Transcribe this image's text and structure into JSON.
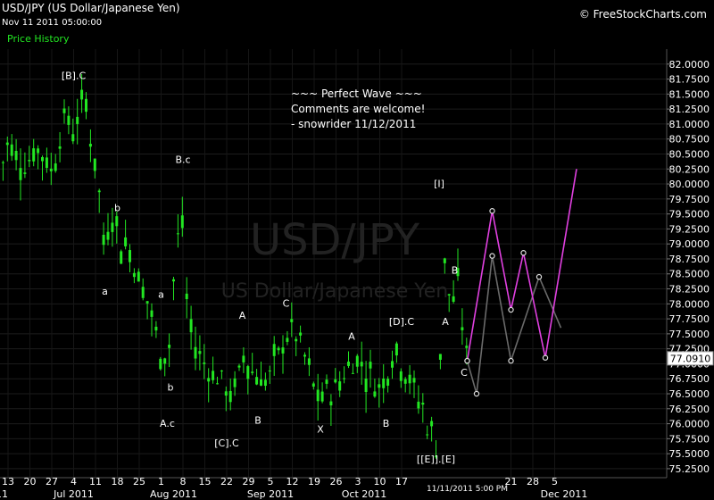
{
  "header": {
    "symbol_title": "USD/JPY (US Dollar/Japanese Yen)",
    "datetime": "Nov 11 2011 05:00:00",
    "panel_label": "Price History",
    "brand": "© FreeStockCharts.com"
  },
  "watermark": {
    "symbol": "USD/JPY",
    "name": "US Dollar/Japanese Yen"
  },
  "comment_lines": [
    "~~~ Perfect Wave ~~~",
    "Comments are welcome!",
    "- snowrider  11/12/2011"
  ],
  "colors": {
    "candles": "#22e622",
    "projection_primary": "#e040e0",
    "projection_alt": "#6a6a6a",
    "label_text": "#ffffff",
    "last_price_bg": "#ffffff"
  },
  "chart_data": {
    "type": "candlestick",
    "ylim": [
      75.1,
      82.25
    ],
    "y_ticks": [
      82.0,
      81.75,
      81.5,
      81.25,
      81.0,
      80.75,
      80.5,
      80.25,
      80.0,
      79.75,
      79.5,
      79.25,
      79.0,
      78.75,
      78.5,
      78.25,
      78.0,
      77.75,
      77.5,
      77.25,
      77.0,
      76.75,
      76.5,
      76.25,
      76.0,
      75.75,
      75.5,
      75.25
    ],
    "y_tick_labels": [
      "82.0000",
      "81.7500",
      "81.5000",
      "81.2500",
      "81.0000",
      "80.7500",
      "80.5000",
      "80.2500",
      "80.0000",
      "79.7500",
      "79.5000",
      "79.2500",
      "79.0000",
      "78.7500",
      "78.5000",
      "78.2500",
      "78.0000",
      "77.7500",
      "77.5000",
      "77.2500",
      "77.0000",
      "76.7500",
      "76.5000",
      "76.2500",
      "76.0000",
      "75.7500",
      "75.5000",
      "75.2500"
    ],
    "x_day_ticks": [
      {
        "label": "13",
        "day": 0
      },
      {
        "label": "20",
        "day": 7
      },
      {
        "label": "27",
        "day": 14
      },
      {
        "label": "4",
        "day": 21
      },
      {
        "label": "11",
        "day": 28
      },
      {
        "label": "18",
        "day": 35
      },
      {
        "label": "25",
        "day": 42
      },
      {
        "label": "1",
        "day": 49
      },
      {
        "label": "8",
        "day": 56
      },
      {
        "label": "15",
        "day": 63
      },
      {
        "label": "22",
        "day": 70
      },
      {
        "label": "29",
        "day": 77
      },
      {
        "label": "5",
        "day": 84
      },
      {
        "label": "12",
        "day": 91
      },
      {
        "label": "19",
        "day": 98
      },
      {
        "label": "26",
        "day": 105
      },
      {
        "label": "3",
        "day": 112
      },
      {
        "label": "10",
        "day": 119
      },
      {
        "label": "17",
        "day": 126
      },
      {
        "label": "21",
        "day": 161
      },
      {
        "label": "28",
        "day": 168
      },
      {
        "label": "5",
        "day": 175
      }
    ],
    "x_month_labels": [
      {
        "label": "2011",
        "day": -4
      },
      {
        "label": "Jul 2011",
        "day": 21
      },
      {
        "label": "Aug 2011",
        "day": 53
      },
      {
        "label": "Sep 2011",
        "day": 84
      },
      {
        "label": "Oct 2011",
        "day": 114
      },
      {
        "label": "Dec 2011",
        "day": 178
      }
    ],
    "last_bar_label": {
      "label": "11/11/2011 5:00 PM",
      "day": 147
    },
    "last_price": 77.091,
    "last_price_label": "77.0910",
    "close_path": [
      [
        -3,
        80.1
      ],
      [
        0,
        80.7
      ],
      [
        5,
        80.3
      ],
      [
        10,
        80.6
      ],
      [
        14,
        80.2
      ],
      [
        18,
        81.1
      ],
      [
        21,
        80.9
      ],
      [
        23,
        81.2
      ],
      [
        25,
        81.4
      ],
      [
        27,
        80.5
      ],
      [
        29,
        80.0
      ],
      [
        30,
        79.3
      ],
      [
        31,
        78.8
      ],
      [
        33,
        79.6
      ],
      [
        36,
        79.0
      ],
      [
        39,
        78.9
      ],
      [
        42,
        78.4
      ],
      [
        45,
        78.0
      ],
      [
        47,
        77.6
      ],
      [
        49,
        77.0
      ],
      [
        50,
        77.3
      ],
      [
        51,
        76.8
      ],
      [
        52,
        77.7
      ],
      [
        53,
        78.4
      ],
      [
        54,
        78.8
      ],
      [
        55,
        79.6
      ],
      [
        56,
        79.2
      ],
      [
        57,
        78.2
      ],
      [
        58,
        77.6
      ],
      [
        60,
        77.3
      ],
      [
        63,
        77.0
      ],
      [
        66,
        76.8
      ],
      [
        69,
        76.7
      ],
      [
        71,
        76.4
      ],
      [
        73,
        76.7
      ],
      [
        75,
        76.9
      ],
      [
        76,
        77.5
      ],
      [
        77,
        76.9
      ],
      [
        80,
        76.8
      ],
      [
        83,
        76.7
      ],
      [
        86,
        77.1
      ],
      [
        88,
        77.3
      ],
      [
        90,
        77.6
      ],
      [
        93,
        77.4
      ],
      [
        95,
        77.1
      ],
      [
        98,
        76.6
      ],
      [
        100,
        76.3
      ],
      [
        102,
        76.6
      ],
      [
        104,
        76.5
      ],
      [
        107,
        76.8
      ],
      [
        110,
        77.0
      ],
      [
        112,
        77.1
      ],
      [
        114,
        76.9
      ],
      [
        116,
        76.8
      ],
      [
        119,
        76.6
      ],
      [
        121,
        76.8
      ],
      [
        123,
        77.2
      ],
      [
        125,
        77.1
      ],
      [
        127,
        76.9
      ],
      [
        129,
        76.7
      ],
      [
        131,
        76.4
      ],
      [
        133,
        76.3
      ],
      [
        134,
        76.0
      ],
      [
        135,
        75.8
      ],
      [
        136,
        75.9
      ],
      [
        137,
        75.6
      ],
      [
        138,
        76.0
      ],
      [
        139,
        79.0
      ],
      [
        140,
        78.6
      ],
      [
        141,
        78.2
      ],
      [
        142,
        78.0
      ],
      [
        143,
        78.1
      ],
      [
        144,
        78.3
      ],
      [
        145,
        77.8
      ],
      [
        146,
        77.5
      ],
      [
        147,
        77.091
      ]
    ],
    "wave_labels": [
      {
        "text": "[B].C",
        "day": 21,
        "price": 81.75
      },
      {
        "text": "b",
        "day": 35,
        "price": 79.55
      },
      {
        "text": "a",
        "day": 31,
        "price": 78.15
      },
      {
        "text": "B.c",
        "day": 56,
        "price": 80.35
      },
      {
        "text": "a",
        "day": 49,
        "price": 78.1
      },
      {
        "text": "b",
        "day": 52,
        "price": 76.55
      },
      {
        "text": "A.c",
        "day": 51,
        "price": 75.95
      },
      {
        "text": "A",
        "day": 75,
        "price": 77.75
      },
      {
        "text": "B",
        "day": 80,
        "price": 76.0
      },
      {
        "text": "[C].C",
        "day": 70,
        "price": 75.62
      },
      {
        "text": "C",
        "day": 89,
        "price": 77.95
      },
      {
        "text": "X",
        "day": 100,
        "price": 75.85
      },
      {
        "text": "A",
        "day": 110,
        "price": 77.4
      },
      {
        "text": "B",
        "day": 121,
        "price": 75.95
      },
      {
        "text": "[D].C",
        "day": 126,
        "price": 77.65
      },
      {
        "text": "[I]",
        "day": 138,
        "price": 79.95
      },
      {
        "text": "B",
        "day": 143,
        "price": 78.5
      },
      {
        "text": "A",
        "day": 140,
        "price": 77.65
      },
      {
        "text": "C",
        "day": 146,
        "price": 76.8
      },
      {
        "text": "[[E]].[E]",
        "day": 137,
        "price": 75.35
      }
    ],
    "projection_primary": [
      [
        147,
        77.05
      ],
      [
        155,
        79.55
      ],
      [
        161,
        77.9
      ],
      [
        165,
        78.85
      ],
      [
        172,
        77.1
      ],
      [
        182,
        80.25
      ]
    ],
    "projection_alt": [
      [
        147,
        77.05
      ],
      [
        150,
        76.5
      ],
      [
        155,
        78.8
      ],
      [
        161,
        77.05
      ],
      [
        170,
        78.45
      ],
      [
        177,
        77.6
      ]
    ]
  }
}
